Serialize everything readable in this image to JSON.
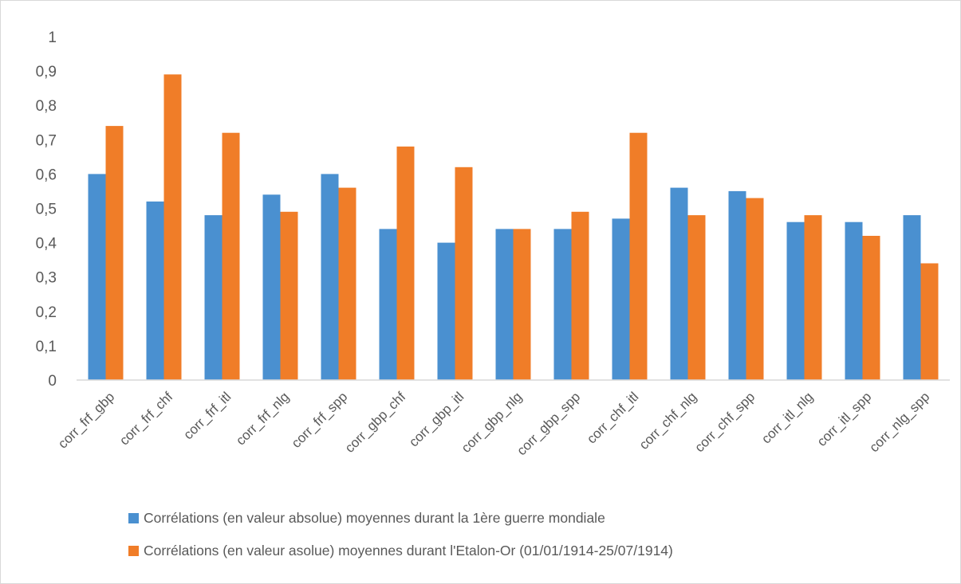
{
  "chart_data": {
    "type": "bar",
    "title": "",
    "xlabel": "",
    "ylabel": "",
    "ylim": [
      0,
      1
    ],
    "yticks": [
      "0",
      "0,1",
      "0,2",
      "0,3",
      "0,4",
      "0,5",
      "0,6",
      "0,7",
      "0,8",
      "0,9",
      "1"
    ],
    "grid": false,
    "legend_position": "bottom",
    "categories": [
      "corr_frf_gbp",
      "corr_frf_chf",
      "corr_frf_itl",
      "corr_frf_nlg",
      "corr_frf_spp",
      "corr_gbp_chf",
      "corr_gbp_itl",
      "corr_gbp_nlg",
      "corr_gbp_spp",
      "corr_chf_itl",
      "corr_chf_nlg",
      "corr_chf_spp",
      "corr_itl_nlg",
      "corr_itl_spp",
      "corr_nlg_spp"
    ],
    "series": [
      {
        "name": "Corrélations (en valeur absolue) moyennes durant la 1ère guerre mondiale",
        "color": "#4A90D0",
        "values": [
          0.6,
          0.52,
          0.48,
          0.54,
          0.6,
          0.44,
          0.4,
          0.44,
          0.44,
          0.47,
          0.56,
          0.55,
          0.46,
          0.46,
          0.48
        ]
      },
      {
        "name": "Corrélations (en valeur asolue) moyennes durant l'Etalon-Or (01/01/1914-25/07/1914)",
        "color": "#F07D28",
        "values": [
          0.74,
          0.89,
          0.72,
          0.49,
          0.56,
          0.68,
          0.62,
          0.44,
          0.49,
          0.72,
          0.48,
          0.53,
          0.48,
          0.42,
          0.34
        ]
      }
    ]
  }
}
